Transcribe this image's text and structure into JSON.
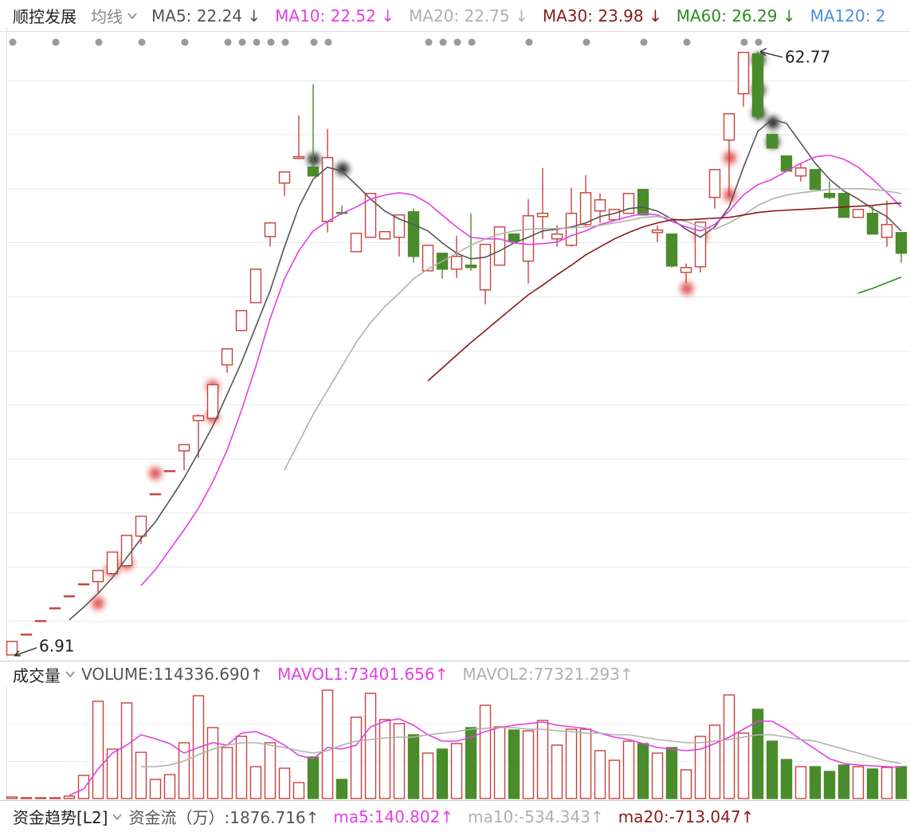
{
  "chart_data": [
    {
      "type": "candlestick",
      "title": "顺控发展",
      "ma_label": "均线",
      "up_color": "#c8413c",
      "down_color": "#4a8c2c",
      "ylim": [
        6.6,
        64.6
      ],
      "open": [
        6.91,
        8.8,
        10.05,
        11.23,
        12.34,
        13.45,
        13.7,
        14.44,
        15.18,
        17.91,
        21.78,
        23.92,
        25.8,
        28.61,
        28.83,
        33.77,
        36.95,
        39.53,
        45.65,
        50.6,
        52.89,
        52.08,
        47.06,
        47.87,
        44.25,
        45.58,
        45.43,
        45.58,
        47.94,
        42.48,
        44.1,
        42.63,
        43.0,
        40.71,
        43.0,
        45.88,
        43.37,
        47.5,
        45.43,
        44.84,
        46.76,
        48.02,
        47.2,
        47.8,
        50.01,
        46.02,
        45.88,
        42.33,
        42.85,
        49.27,
        54.58,
        58.87,
        62.56,
        55.1,
        53.11,
        51.26,
        51.85,
        49.64,
        49.64,
        47.43,
        47.8,
        45.58,
        46.02
      ],
      "high": [
        8.16,
        8.83,
        10.08,
        11.26,
        12.37,
        13.48,
        14.73,
        16.43,
        17.98,
        19.75,
        21.82,
        23.96,
        26.39,
        29.2,
        31.93,
        35.25,
        38.79,
        42.63,
        46.91,
        51.63,
        56.87,
        59.75,
        55.62,
        48.53,
        45.95,
        49.64,
        46.1,
        47.65,
        48.24,
        44.84,
        44.1,
        45.73,
        47.8,
        44.92,
        46.54,
        45.88,
        49.12,
        52.0,
        46.69,
        50.16,
        51.34,
        49.64,
        48.16,
        49.64,
        50.01,
        46.69,
        45.88,
        43.15,
        46.98,
        51.85,
        57.02,
        62.7,
        62.77,
        55.1,
        53.11,
        52.44,
        51.85,
        50.75,
        49.64,
        48.16,
        48.53,
        48.98,
        46.02
      ],
      "low": [
        6.91,
        8.8,
        10.05,
        11.23,
        12.34,
        13.45,
        12.59,
        14.44,
        15.18,
        17.17,
        21.78,
        23.92,
        24.03,
        25.14,
        28.83,
        33.04,
        36.95,
        39.53,
        44.7,
        49.42,
        52.81,
        51.26,
        46.02,
        47.65,
        44.25,
        45.58,
        45.43,
        43.81,
        43.22,
        42.48,
        41.74,
        41.82,
        42.48,
        39.38,
        43.0,
        45.21,
        41.3,
        45.43,
        44.7,
        44.7,
        46.47,
        46.91,
        47.2,
        47.8,
        47.65,
        45.14,
        42.78,
        41.3,
        42.33,
        48.24,
        49.35,
        57.68,
        56.5,
        53.85,
        51.71,
        50.75,
        50.01,
        49.12,
        47.43,
        47.43,
        45.88,
        44.7,
        43.22
      ],
      "close": [
        8.16,
        8.83,
        10.08,
        11.26,
        12.37,
        13.48,
        14.73,
        16.43,
        17.98,
        19.75,
        21.82,
        23.96,
        26.39,
        29.05,
        31.93,
        35.25,
        38.79,
        42.63,
        46.91,
        51.63,
        53.04,
        51.26,
        52.96,
        47.8,
        45.95,
        49.64,
        46.1,
        47.65,
        43.81,
        44.84,
        42.63,
        43.81,
        42.78,
        44.92,
        46.54,
        45.21,
        47.57,
        47.8,
        45.88,
        47.8,
        49.71,
        49.05,
        48.16,
        49.64,
        47.65,
        46.25,
        42.92,
        42.78,
        46.98,
        51.85,
        57.02,
        62.7,
        56.8,
        53.85,
        51.71,
        52.0,
        50.01,
        49.27,
        47.43,
        48.16,
        45.88,
        46.76,
        44.1
      ],
      "ma_lines": [
        {
          "label": "MA5: 22.24 ↓",
          "color": "#555555",
          "values": [
            null,
            null,
            null,
            null,
            10.15,
            11.33,
            12.59,
            14.06,
            15.91,
            17.68,
            19.23,
            21.22,
            23.29,
            25.65,
            28.09,
            31.04,
            33.99,
            37.31,
            40.63,
            44.69,
            48.38,
            50.96,
            52.07,
            51.7,
            50.45,
            49.12,
            48.01,
            47.27,
            46.76,
            46.17,
            45.06,
            44.1,
            43.58,
            43.73,
            44.32,
            45.06,
            45.58,
            46.17,
            46.32,
            46.54,
            46.91,
            47.5,
            47.79,
            48.23,
            48.38,
            48.01,
            47.27,
            46.32,
            45.58,
            46.54,
            48.38,
            52.07,
            55.39,
            56.5,
            56.13,
            54.29,
            52.44,
            50.96,
            49.86,
            49.12,
            48.23,
            47.5,
            46.17
          ]
        },
        {
          "label": "MA10: 22.52 ↓",
          "color": "#e43ee4",
          "values": [
            null,
            null,
            null,
            null,
            null,
            null,
            null,
            null,
            null,
            13.33,
            14.8,
            16.65,
            18.49,
            20.49,
            22.92,
            25.87,
            29.56,
            33.62,
            38.05,
            41.74,
            44.32,
            46.17,
            47.05,
            47.79,
            48.38,
            49.12,
            49.49,
            49.71,
            49.49,
            48.75,
            47.64,
            46.54,
            45.58,
            45.43,
            45.43,
            45.06,
            44.91,
            44.99,
            45.13,
            45.73,
            46.17,
            46.76,
            47.13,
            47.5,
            47.79,
            47.64,
            47.05,
            46.54,
            46.17,
            46.76,
            48.01,
            49.49,
            50.45,
            50.96,
            51.7,
            52.44,
            53.03,
            53.18,
            52.81,
            52.07,
            50.96,
            49.71,
            48.38
          ]
        },
        {
          "label": "MA20: 22.75 ↓",
          "color": "#b0b0b0",
          "values": [
            null,
            null,
            null,
            null,
            null,
            null,
            null,
            null,
            null,
            null,
            null,
            null,
            null,
            null,
            null,
            null,
            null,
            null,
            null,
            24.03,
            26.61,
            29.19,
            31.41,
            33.62,
            35.84,
            37.68,
            39.16,
            40.41,
            41.74,
            42.63,
            43.36,
            44.1,
            44.84,
            45.43,
            45.87,
            46.17,
            46.32,
            46.39,
            46.39,
            46.46,
            46.54,
            46.68,
            46.91,
            47.13,
            47.42,
            47.5,
            47.35,
            47.05,
            46.54,
            46.32,
            46.91,
            47.64,
            48.53,
            49.12,
            49.49,
            49.71,
            49.86,
            50.01,
            50.08,
            50.08,
            50.01,
            49.86,
            49.64
          ]
        },
        {
          "label": "MA30: 23.98 ↓",
          "color": "#8b1a1a",
          "values": [
            null,
            null,
            null,
            null,
            null,
            null,
            null,
            null,
            null,
            null,
            null,
            null,
            null,
            null,
            null,
            null,
            null,
            null,
            null,
            null,
            null,
            null,
            null,
            null,
            null,
            null,
            null,
            null,
            null,
            32.29,
            33.47,
            34.66,
            35.84,
            36.94,
            38.05,
            39.16,
            40.26,
            41.15,
            42.11,
            42.99,
            43.95,
            44.69,
            45.43,
            46.02,
            46.54,
            46.91,
            47.2,
            47.2,
            47.27,
            47.35,
            47.42,
            47.64,
            47.87,
            48.01,
            48.09,
            48.16,
            48.23,
            48.31,
            48.38,
            48.46,
            48.53,
            48.68,
            48.75
          ]
        },
        {
          "label": "MA60: 26.29 ↓",
          "color": "#2f8a22",
          "values": [
            null,
            null,
            null,
            null,
            null,
            null,
            null,
            null,
            null,
            null,
            null,
            null,
            null,
            null,
            null,
            null,
            null,
            null,
            null,
            null,
            null,
            null,
            null,
            null,
            null,
            null,
            null,
            null,
            null,
            null,
            null,
            null,
            null,
            null,
            null,
            null,
            null,
            null,
            null,
            null,
            null,
            null,
            null,
            null,
            null,
            null,
            null,
            null,
            null,
            null,
            null,
            null,
            null,
            null,
            null,
            null,
            null,
            null,
            null,
            40.41,
            40.85,
            41.37,
            41.89
          ]
        },
        {
          "label": "MA120: 2",
          "color": "#4a8fe0"
        }
      ]
    },
    {
      "type": "bar",
      "title": "成交量",
      "value_label": "VOLUME:114336.690↑",
      "value_color": "#555555",
      "ylim": [
        0,
        140000
      ],
      "values": [
        2000,
        1000,
        1000,
        1000,
        3000,
        29000,
        122000,
        62000,
        120000,
        58000,
        24000,
        30000,
        70000,
        129000,
        89000,
        64000,
        78000,
        40000,
        70000,
        38000,
        20000,
        52000,
        136000,
        24000,
        102000,
        132000,
        99000,
        94000,
        80000,
        57000,
        62000,
        69000,
        89000,
        117000,
        90000,
        86000,
        85000,
        98000,
        67000,
        87000,
        87000,
        60000,
        48000,
        72000,
        69000,
        57000,
        64000,
        36000,
        78000,
        92000,
        130000,
        82000,
        112000,
        72000,
        49000,
        40000,
        40000,
        34000,
        42000,
        40000,
        37000,
        39000,
        40000
      ],
      "ma_lines": [
        {
          "label": "MAVOL1:73401.656↑",
          "color": "#e43ee4",
          "values": [
            null,
            null,
            null,
            null,
            4000,
            12000,
            37000,
            57000,
            67000,
            80000,
            75000,
            69000,
            57000,
            64000,
            70000,
            67000,
            82000,
            84000,
            77000,
            67000,
            54000,
            50000,
            64000,
            62000,
            67000,
            90000,
            97000,
            100000,
            92000,
            80000,
            72000,
            72000,
            77000,
            84000,
            89000,
            92000,
            94000,
            96000,
            92000,
            90000,
            88000,
            82000,
            77000,
            74000,
            69000,
            64000,
            62000,
            60000,
            62000,
            69000,
            77000,
            87000,
            97000,
            97000,
            87000,
            74000,
            62000,
            50000,
            44000,
            42000,
            41000,
            40000,
            39000
          ]
        },
        {
          "label": "MAVOL2:77321.293↑",
          "color": "#b0b0b0",
          "values": [
            null,
            null,
            null,
            null,
            null,
            null,
            null,
            null,
            null,
            40000,
            40000,
            42000,
            47000,
            55000,
            62000,
            67000,
            70000,
            70000,
            67000,
            64000,
            60000,
            57000,
            60000,
            67000,
            72000,
            74000,
            76000,
            77000,
            77000,
            80000,
            82000,
            84000,
            87000,
            88000,
            89000,
            89000,
            87000,
            87000,
            85000,
            84000,
            82000,
            82000,
            80000,
            80000,
            77000,
            74000,
            72000,
            70000,
            70000,
            72000,
            74000,
            77000,
            80000,
            80000,
            77000,
            74000,
            72000,
            67000,
            62000,
            57000,
            52000,
            47000,
            44000
          ]
        }
      ]
    }
  ],
  "footer_panel": {
    "title": "资金趋势[L2]",
    "indicators": [
      {
        "label": "资金流（万）:1876.716↑",
        "color": "#555555"
      },
      {
        "label": "ma5:140.802↑",
        "color": "#e43ee4"
      },
      {
        "label": "ma10:-534.343↑",
        "color": "#b0b0b0"
      },
      {
        "label": "ma20:-713.047↑",
        "color": "#8b1a1a"
      }
    ]
  }
}
